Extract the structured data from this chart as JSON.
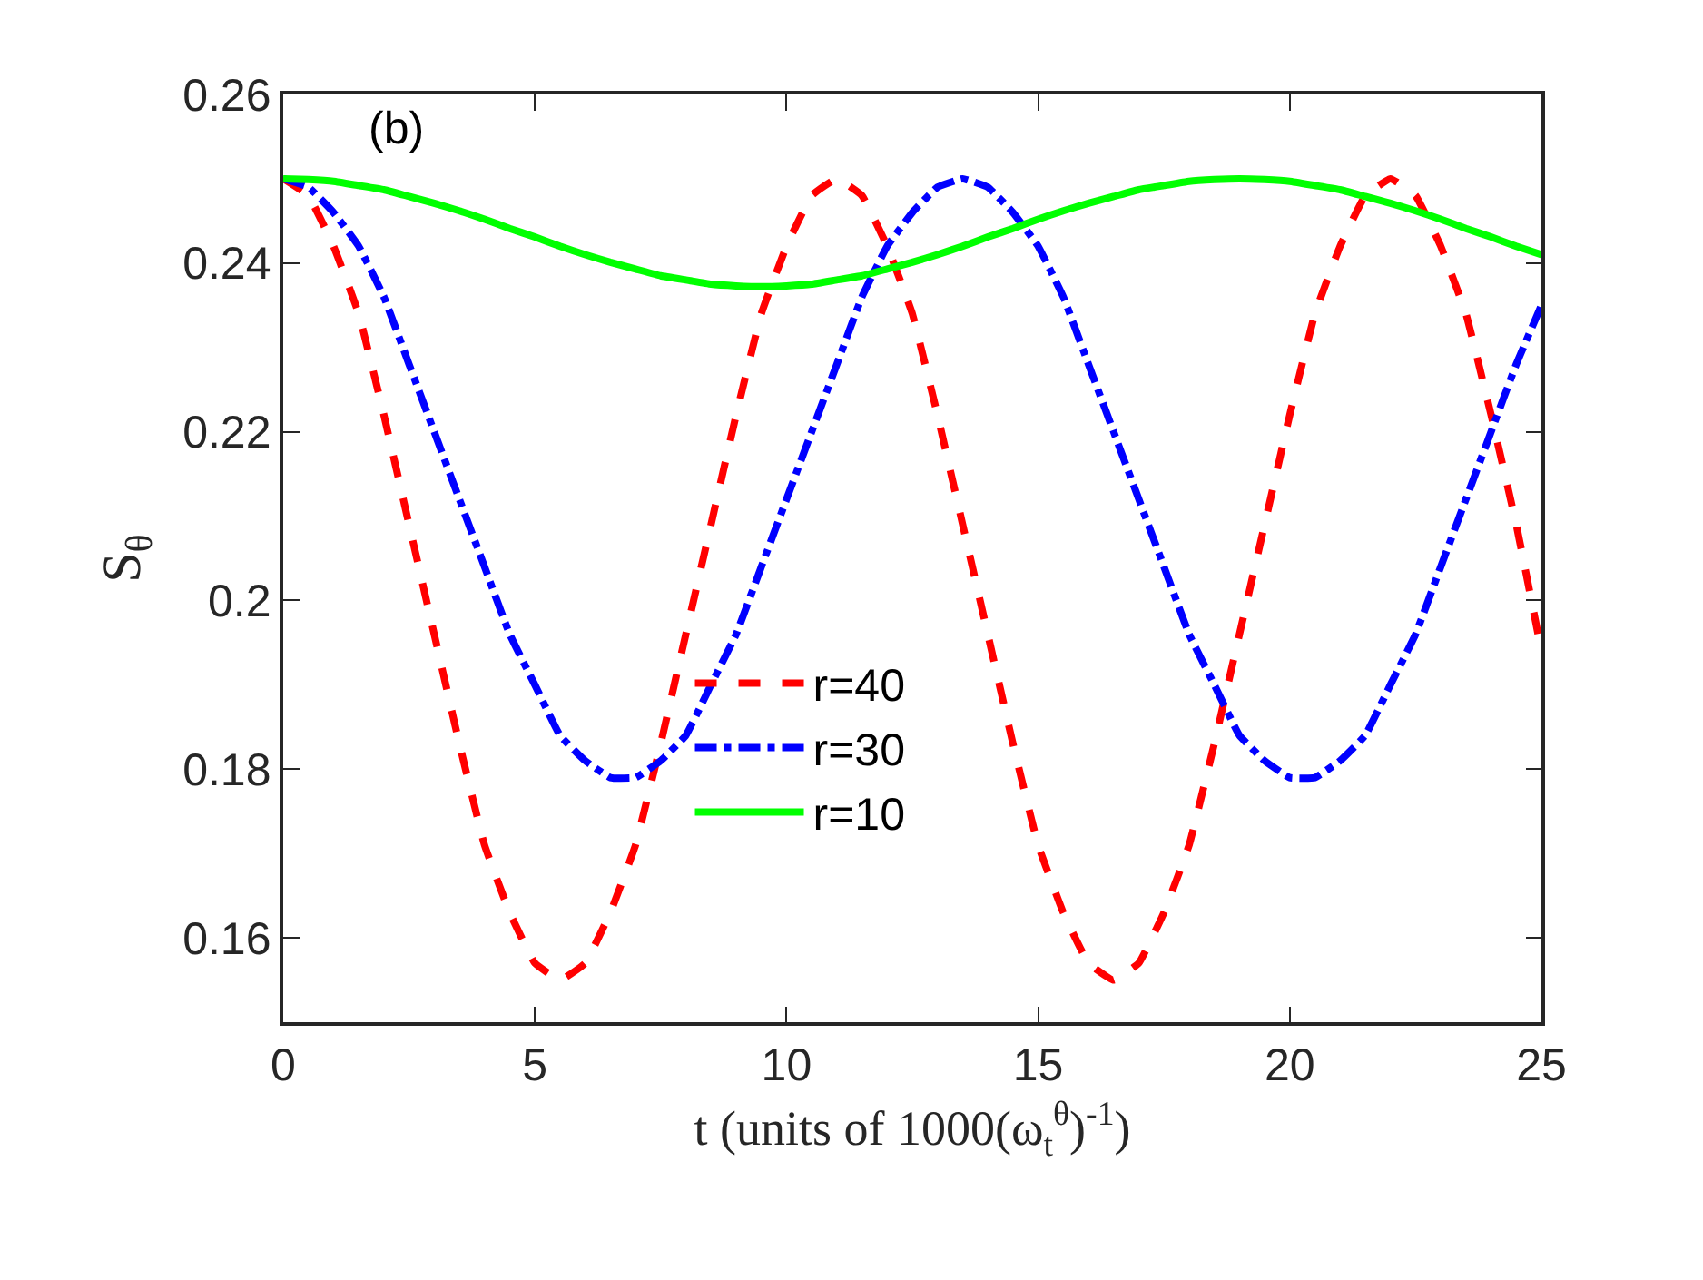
{
  "chart_data": {
    "type": "line",
    "xlabel": "t (units of 1000(ω$_{t}$$^{θ}$)$^{-1}$)",
    "ylabel": "S$_{θ}$",
    "annotations": [
      "(b)"
    ],
    "x": [
      0,
      0.5,
      1,
      1.5,
      2,
      2.5,
      3,
      3.5,
      4,
      4.5,
      5,
      5.5,
      6,
      6.5,
      7,
      7.5,
      8,
      8.5,
      9,
      9.5,
      10,
      10.5,
      11,
      11.5,
      12,
      12.5,
      13,
      13.5,
      14,
      14.5,
      15,
      15.5,
      16,
      16.5,
      17,
      17.5,
      18,
      18.5,
      19,
      19.5,
      20,
      20.5,
      21,
      21.5,
      22,
      22.5,
      23,
      23.5,
      24,
      24.5,
      25
    ],
    "series": [
      {
        "name": "r=40",
        "color": "#ff0000",
        "line_style": "dashed",
        "values": [
          0.25,
          0.248,
          0.242,
          0.234,
          0.222,
          0.209,
          0.196,
          0.183,
          0.171,
          0.163,
          0.157,
          0.155,
          0.157,
          0.163,
          0.171,
          0.183,
          0.196,
          0.209,
          0.222,
          0.234,
          0.242,
          0.248,
          0.25,
          0.248,
          0.242,
          0.234,
          0.222,
          0.209,
          0.196,
          0.183,
          0.171,
          0.163,
          0.157,
          0.155,
          0.157,
          0.163,
          0.171,
          0.183,
          0.196,
          0.209,
          0.222,
          0.234,
          0.242,
          0.248,
          0.25,
          0.248,
          0.242,
          0.234,
          0.222,
          0.209,
          0.194
        ]
      },
      {
        "name": "r=30",
        "color": "#0000ff",
        "line_style": "dashdot",
        "values": [
          0.25,
          0.249,
          0.246,
          0.242,
          0.236,
          0.228,
          0.22,
          0.212,
          0.204,
          0.196,
          0.19,
          0.184,
          0.181,
          0.179,
          0.179,
          0.181,
          0.184,
          0.19,
          0.196,
          0.204,
          0.212,
          0.22,
          0.228,
          0.236,
          0.242,
          0.246,
          0.249,
          0.25,
          0.249,
          0.246,
          0.242,
          0.236,
          0.228,
          0.22,
          0.212,
          0.204,
          0.196,
          0.19,
          0.184,
          0.181,
          0.179,
          0.179,
          0.181,
          0.184,
          0.19,
          0.196,
          0.204,
          0.212,
          0.22,
          0.228,
          0.235
        ]
      },
      {
        "name": "r=10",
        "color": "#00ff00",
        "line_style": "solid",
        "values": [
          0.25,
          0.2499,
          0.2497,
          0.2492,
          0.2487,
          0.2479,
          0.2471,
          0.2462,
          0.2452,
          0.2441,
          0.2431,
          0.242,
          0.241,
          0.2401,
          0.2393,
          0.2385,
          0.238,
          0.2375,
          0.2373,
          0.2372,
          0.2373,
          0.2375,
          0.238,
          0.2385,
          0.2393,
          0.2401,
          0.241,
          0.242,
          0.2431,
          0.2441,
          0.2452,
          0.2462,
          0.2471,
          0.2479,
          0.2487,
          0.2492,
          0.2497,
          0.2499,
          0.25,
          0.2499,
          0.2497,
          0.2492,
          0.2487,
          0.2479,
          0.2471,
          0.2462,
          0.2452,
          0.2441,
          0.2431,
          0.242,
          0.241
        ]
      }
    ],
    "xlim": [
      0,
      25
    ],
    "xticks": [
      0,
      5,
      10,
      15,
      20,
      25
    ],
    "ylim": [
      0.15,
      0.26
    ],
    "yticks": [
      0.16,
      0.18,
      0.2,
      0.22,
      0.24,
      0.26
    ],
    "legend": "bottom center",
    "marker": "none"
  }
}
